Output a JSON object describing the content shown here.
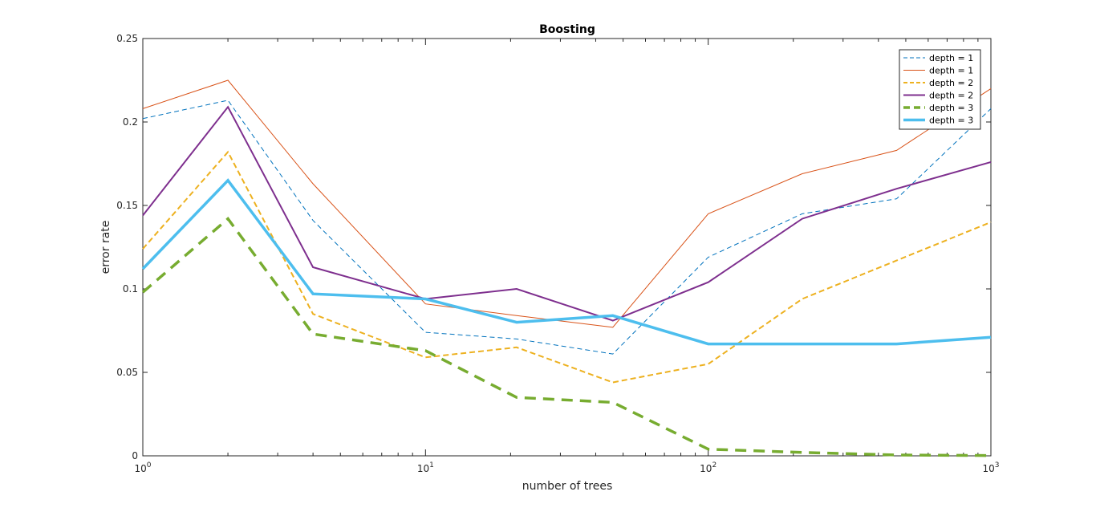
{
  "chart_data": {
    "type": "line",
    "title": "Boosting",
    "xlabel": "number of trees",
    "ylabel": "error rate",
    "x_scale": "log",
    "xlim": [
      1,
      1000
    ],
    "ylim": [
      0,
      0.25
    ],
    "x_ticks": [
      {
        "value": 1,
        "base": "10",
        "exp": "0"
      },
      {
        "value": 10,
        "base": "10",
        "exp": "1"
      },
      {
        "value": 100,
        "base": "10",
        "exp": "2"
      },
      {
        "value": 1000,
        "base": "10",
        "exp": "3"
      }
    ],
    "y_ticks": [
      {
        "value": 0,
        "label": "0"
      },
      {
        "value": 0.05,
        "label": "0.05"
      },
      {
        "value": 0.1,
        "label": "0.1"
      },
      {
        "value": 0.15,
        "label": "0.15"
      },
      {
        "value": 0.2,
        "label": "0.2"
      },
      {
        "value": 0.25,
        "label": "0.25"
      }
    ],
    "grid": false,
    "legend_position": "top-right",
    "x": [
      1,
      2,
      4,
      10,
      21,
      46,
      100,
      215,
      464,
      1000
    ],
    "series": [
      {
        "name": "depth = 1",
        "color": "#0072BD",
        "style": "dashed",
        "weight": "thin",
        "values": [
          0.202,
          0.213,
          0.141,
          0.074,
          0.07,
          0.061,
          0.119,
          0.145,
          0.154,
          0.208
        ]
      },
      {
        "name": "depth = 1",
        "color": "#D95319",
        "style": "solid",
        "weight": "thin",
        "values": [
          0.208,
          0.225,
          0.163,
          0.091,
          0.084,
          0.077,
          0.145,
          0.169,
          0.183,
          0.22
        ]
      },
      {
        "name": "depth = 2",
        "color": "#EDB120",
        "style": "dashed",
        "weight": "medium",
        "values": [
          0.124,
          0.182,
          0.085,
          0.059,
          0.065,
          0.044,
          0.055,
          0.094,
          0.117,
          0.14
        ]
      },
      {
        "name": "depth = 2",
        "color": "#7E2F8E",
        "style": "solid",
        "weight": "medium",
        "values": [
          0.144,
          0.209,
          0.113,
          0.094,
          0.1,
          0.081,
          0.104,
          0.142,
          0.16,
          0.176
        ]
      },
      {
        "name": "depth = 3",
        "color": "#77AC30",
        "style": "dashed",
        "weight": "thick",
        "values": [
          0.098,
          0.142,
          0.073,
          0.063,
          0.035,
          0.032,
          0.004,
          0.002,
          0.0005,
          0.0002
        ]
      },
      {
        "name": "depth = 3",
        "color": "#4DBEEE",
        "style": "solid",
        "weight": "thick",
        "values": [
          0.112,
          0.165,
          0.097,
          0.094,
          0.08,
          0.084,
          0.067,
          0.067,
          0.067,
          0.071
        ]
      }
    ]
  }
}
